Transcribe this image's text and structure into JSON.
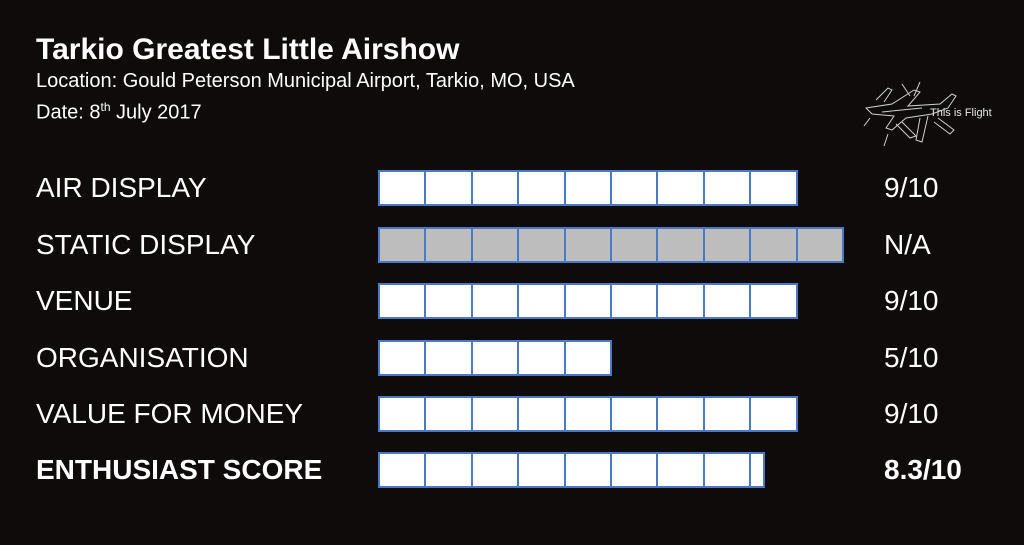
{
  "header": {
    "title": "Tarkio Greatest Little Airshow",
    "location": "Location: Gould Peterson Municipal Airport, Tarkio, MO, USA",
    "date_prefix": "Date: 8",
    "date_suffix": "th",
    "date_rest": " July 2017"
  },
  "logo": {
    "text": "This is Flight",
    "icon": "aircraft-sketch-icon"
  },
  "colors": {
    "background": "#0f0b0b",
    "bar_border": "#4a7ac7",
    "bar_fill": "#ffffff",
    "bar_na_fill": "#bdbdbd"
  },
  "ratings": [
    {
      "label": "AIR DISPLAY",
      "value": 9,
      "max": 10,
      "score": "9/10",
      "na": false,
      "bold": false
    },
    {
      "label": "STATIC DISPLAY",
      "value": 10,
      "max": 10,
      "score": "N/A",
      "na": true,
      "bold": false
    },
    {
      "label": "VENUE",
      "value": 9,
      "max": 10,
      "score": "9/10",
      "na": false,
      "bold": false
    },
    {
      "label": "ORGANISATION",
      "value": 5,
      "max": 10,
      "score": "5/10",
      "na": false,
      "bold": false
    },
    {
      "label": "VALUE FOR MONEY",
      "value": 9,
      "max": 10,
      "score": "9/10",
      "na": false,
      "bold": false
    },
    {
      "label": "ENTHUSIAST SCORE",
      "value": 8.3,
      "max": 10,
      "score": "8.3/10",
      "na": false,
      "bold": true
    }
  ]
}
